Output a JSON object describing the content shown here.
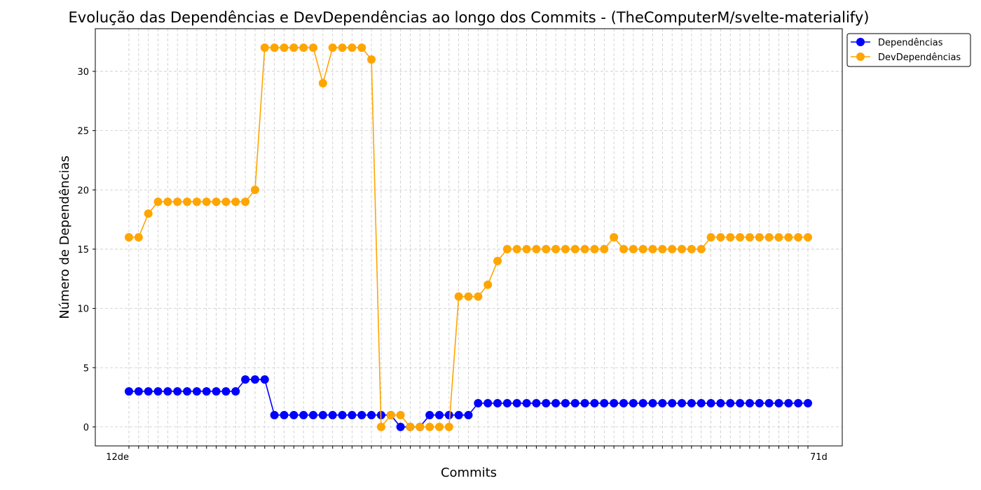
{
  "chart_data": {
    "type": "line",
    "title": "Evolução das Dependências e DevDependências ao longo dos Commits - (TheComputerM/svelte-materialify)",
    "xlabel": "Commits",
    "ylabel": "Número de Dependências",
    "ylim": [
      -1.6,
      33.6
    ],
    "yticks": [
      0,
      5,
      10,
      15,
      20,
      25,
      30
    ],
    "grid": true,
    "legend_position": "upper-right-outside",
    "x_first_label": "12de",
    "x_last_label": "71d",
    "series": [
      {
        "name": "Dependências",
        "color": "#0000ff",
        "values": [
          3,
          3,
          3,
          3,
          3,
          3,
          3,
          3,
          3,
          3,
          3,
          3,
          4,
          4,
          4,
          1,
          1,
          1,
          1,
          1,
          1,
          1,
          1,
          1,
          1,
          1,
          1,
          1,
          0,
          0,
          0,
          1,
          1,
          1,
          1,
          1,
          2,
          2,
          2,
          2,
          2,
          2,
          2,
          2,
          2,
          2,
          2,
          2,
          2,
          2,
          2,
          2,
          2,
          2,
          2,
          2,
          2,
          2,
          2,
          2,
          2,
          2,
          2,
          2,
          2,
          2,
          2,
          2,
          2,
          2,
          2
        ]
      },
      {
        "name": "DevDependências",
        "color": "#ffa500",
        "values": [
          16,
          16,
          18,
          19,
          19,
          19,
          19,
          19,
          19,
          19,
          19,
          19,
          19,
          20,
          32,
          32,
          32,
          32,
          32,
          32,
          29,
          32,
          32,
          32,
          32,
          31,
          0,
          1,
          1,
          0,
          0,
          0,
          0,
          0,
          11,
          11,
          11,
          12,
          14,
          15,
          15,
          15,
          15,
          15,
          15,
          15,
          15,
          15,
          15,
          15,
          16,
          15,
          15,
          15,
          15,
          15,
          15,
          15,
          15,
          15,
          16,
          16,
          16,
          16,
          16,
          16,
          16,
          16,
          16,
          16,
          16
        ]
      }
    ]
  }
}
